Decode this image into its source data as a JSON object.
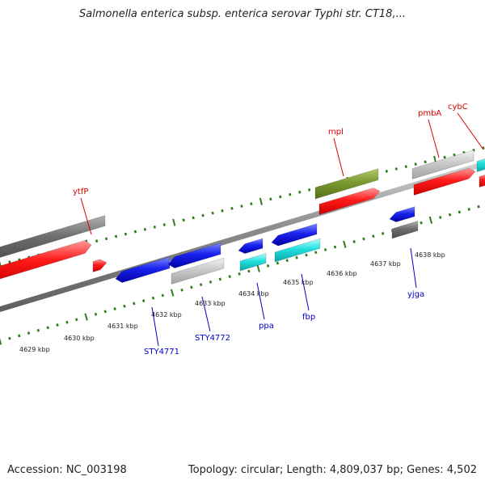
{
  "title": "Salmonella enterica subsp. enterica serovar Typhi str. CT18,...",
  "footer": {
    "accession": "Accession: NC_003198",
    "summary": "Topology: circular; Length: 4,809,037 bp; Genes: 4,502"
  },
  "colors": {
    "backbone": "#8a8a8a",
    "tick": "#2e7d1a",
    "forward_label": "#dd0000",
    "reverse_label": "#0000cc",
    "kbp_label": "#222222"
  },
  "kbp_labels": [
    "4629 kbp",
    "4630 kbp",
    "4631 kbp",
    "4632 kbp",
    "4633 kbp",
    "4634 kbp",
    "4635 kbp",
    "4636 kbp",
    "4637 kbp",
    "4638 kbp"
  ],
  "forward_genes": [
    {
      "label": "ytfP"
    },
    {
      "label": "mpl"
    },
    {
      "label": "pmbA"
    },
    {
      "label": "cybC"
    }
  ],
  "reverse_genes": [
    {
      "label": "STY4771"
    },
    {
      "label": "STY4772"
    },
    {
      "label": "ppa"
    },
    {
      "label": "fbp"
    },
    {
      "label": "yjga"
    }
  ]
}
